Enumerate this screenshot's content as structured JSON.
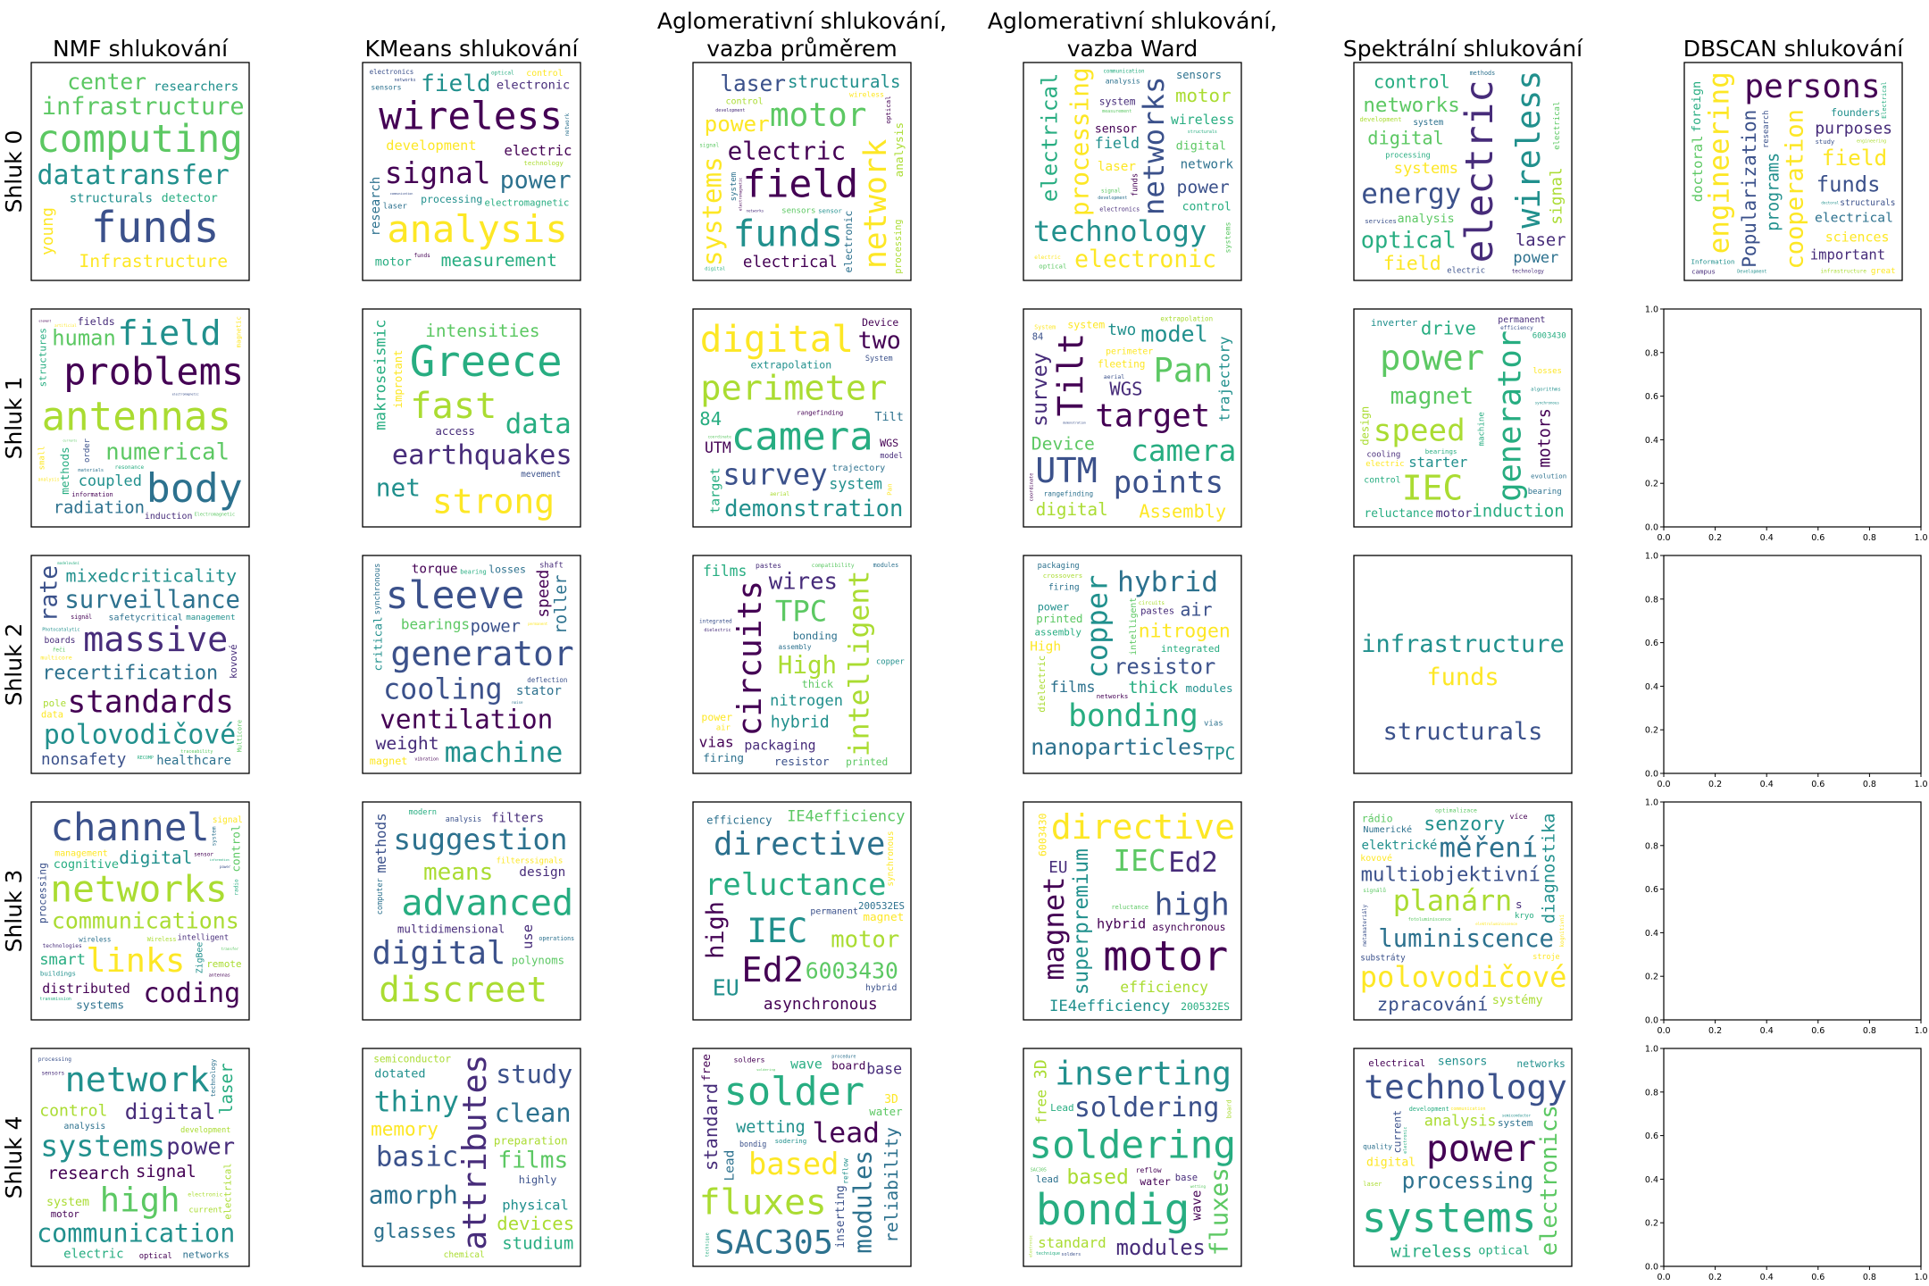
{
  "chart_data": {
    "type": "wordcloud-grid",
    "columns": [
      "NMF shlukování",
      "KMeans shlukování",
      "Aglomerativní shlukování,\nvazba průměrem",
      "Aglomerativní shlukování,\nvazba Ward",
      "Spektrální shlukování",
      "DBSCAN shlukování"
    ],
    "rows": [
      "Shluk 0",
      "Shluk 1",
      "Shluk 2",
      "Shluk 3",
      "Shluk 4"
    ],
    "empty_axes_ticks": [
      "0.0",
      "0.2",
      "0.4",
      "0.6",
      "0.8",
      "1.0"
    ],
    "empty_axes_xlim": [
      0,
      1
    ],
    "empty_axes_ylim": [
      0,
      1
    ],
    "palette": [
      "#440154",
      "#472c7a",
      "#3b518b",
      "#2c718e",
      "#21908d",
      "#27ad81",
      "#5cc863",
      "#aadc32",
      "#fde725"
    ],
    "clouds": [
      [
        [
          "funds",
          "datatransfer",
          "computing",
          "infrastructure",
          "center",
          "Infrastructure",
          "young",
          "structurals",
          "researchers",
          "laboratory",
          "detector",
          "Fermilab"
        ],
        [
          "signal",
          "wireless",
          "analysis",
          "field",
          "measurement",
          "structurals",
          "development",
          "power",
          "digital",
          "research",
          "electric",
          "system",
          "electronic",
          "electromagnetic",
          "systems",
          "processing",
          "motor",
          "infrastructure",
          "electronics",
          "sensors",
          "laser",
          "control",
          "electrical",
          "funds",
          "technology",
          "networks",
          "optical",
          "network",
          "communication"
        ],
        [
          "motor",
          "funds",
          "field",
          "electric",
          "laser",
          "structurals",
          "systems",
          "network",
          "electrical",
          "measurement",
          "power",
          "infrastructure",
          "communication",
          "technology",
          "control",
          "research",
          "wireless",
          "analysis",
          "electronic",
          "processing",
          "digital",
          "sensors",
          "system",
          "optical",
          "development",
          "sensor",
          "signal",
          "networks",
          "electromagnetic",
          "electronics"
        ],
        [
          "technology",
          "networks",
          "electronic",
          "processing",
          "digital",
          "motor",
          "electrical",
          "wireless",
          "infrastructure",
          "electromagnetic",
          "control",
          "network",
          "field",
          "power",
          "system",
          "laser",
          "electronics",
          "sensor",
          "funds",
          "systems",
          "analysis",
          "sensors",
          "communication",
          "structurals",
          "development",
          "optical",
          "signal",
          "electric",
          "measurement"
        ],
        [
          "electric",
          "energy",
          "optical",
          "networks",
          "wireless",
          "digital",
          "laser",
          "systems",
          "power",
          "analysis",
          "field",
          "control",
          "signal",
          "electric",
          "processing",
          "system",
          "development",
          "information",
          "technology",
          "communication",
          "services",
          "methods",
          "electrical",
          "magnetic"
        ],
        [
          "engineering",
          "persons",
          "cooperation",
          "Popularization",
          "electrical",
          "important",
          "purposes",
          "doctoral",
          "programs",
          "funds",
          "field",
          "improvement",
          "founders",
          "informatics",
          "sciences",
          "research",
          "foreign",
          "structurals",
          "Information",
          "study",
          "great",
          "Electrical",
          "infrastructure",
          "campus",
          "engineering",
          "doctoral",
          "Development"
        ]
      ],
      [
        [
          "antennas",
          "problems",
          "body",
          "field",
          "numerical",
          "radiation",
          "human",
          "methods",
          "coupled",
          "modeling",
          "induction",
          "high-order",
          "Field",
          "temperature",
          "structures",
          "electric",
          "small",
          "optimization",
          "magnetic",
          "fields",
          "resonance",
          "materials",
          "information",
          "electromagnetic",
          "order",
          "Electromagnetic",
          "element",
          "artificial",
          "analysis",
          "currents"
        ],
        [
          "Greece",
          "fast",
          "earthquakes",
          "strong",
          "data",
          "makroseismic",
          "intensities",
          "net",
          "improtant",
          "GreeceSMINT",
          "access",
          "informations",
          "mevement",
          "information"
        ],
        [
          "survey",
          "perimeter",
          "camera",
          "digital",
          "demonstration",
          "system",
          "fleeting",
          "Assembly",
          "points",
          "Tilt",
          "two",
          "UTM",
          "extrapolation",
          "target",
          "84",
          "trajectory",
          "System",
          "WGS",
          "rangefinding",
          "model",
          "coordinate",
          "Device",
          "aerial",
          "Pan"
        ],
        [
          "target",
          "Pan",
          "camera",
          "Tilt",
          "UTM",
          "survey",
          "trajectory",
          "points",
          "model",
          "digital",
          "Device",
          "Assembly",
          "system",
          "WGS",
          "perimeter",
          "fleeting",
          "rangefinding",
          "two",
          "aerial",
          "System",
          "84",
          "coordinate",
          "extrapolation",
          "demonstration"
        ],
        [
          "power",
          "generator",
          "speed",
          "IEC",
          "magnet",
          "drive",
          "induction",
          "starter",
          "motor",
          "optimization",
          "reluctance",
          "permanent",
          "inverter",
          "excitation",
          "control",
          "motors",
          "bearing",
          "ventilation",
          "efficiency",
          "algorithms",
          "design",
          "synchronous",
          "electric",
          "machine",
          "losses",
          "cooling",
          "6003430",
          "evolution",
          "bearings"
        ],
        null
      ],
      [
        [
          "surveillance",
          "recertification",
          "polovodičové",
          "massive",
          "rate",
          "mixedcriticality",
          "standards",
          "radiometry",
          "nonsafety",
          "healthcare",
          "certification",
          "safetycritical",
          "kovové",
          "safety",
          "boards",
          "pole",
          "numerické",
          "management",
          "Multicore",
          "resource",
          "multicore",
          "data",
          "signál",
          "modelování",
          "Photocatalytic",
          "řeči",
          "traceability",
          "RECOMP"
        ],
        [
          "ventilation",
          "generator",
          "sleeve",
          "cooling",
          "machine",
          "weight",
          "power",
          "roller",
          "speed",
          "optimization",
          "bearings",
          "torque",
          "stator",
          "magnet",
          "critical",
          "shaft",
          "losses",
          "deflection",
          "efficiency",
          "synchronous",
          "bearing",
          "vibration",
          "permanent",
          "noise"
        ],
        [
          "intelligent",
          "circuits",
          "packaging",
          "crossovers",
          "wires",
          "nitrogen",
          "High",
          "TPC",
          "hybrid",
          "vias",
          "bonding",
          "firing",
          "thick",
          "resistor",
          "printed",
          "nanoparticles",
          "films",
          "modules",
          "assembly",
          "power",
          "copper",
          "pastes",
          "integrated",
          "air",
          "dielectric",
          "compatibility"
        ],
        [
          "copper",
          "bonding",
          "nanoparticles",
          "hybrid",
          "nitrogen",
          "resistor",
          "air",
          "thick",
          "films",
          "assembly",
          "intelligent",
          "modules",
          "integrated",
          "compatibility",
          "TPC",
          "firing",
          "pastes",
          "printed",
          "High",
          "power",
          "dielectric",
          "crossovers",
          "packaging",
          "vias",
          "circuits",
          "networks"
        ],
        [
          "infrastructure",
          "funds",
          "structurals"
        ],
        null
      ],
      [
        [
          "links",
          "communications",
          "channel",
          "networks",
          "coding",
          "digital",
          "distributed",
          "communication",
          "processing",
          "smart",
          "systems",
          "cognitive",
          "ZigBee",
          "management",
          "control",
          "intelligent",
          "wireless",
          "buildings",
          "remote",
          "transmission",
          "signal",
          "Wireless",
          "sensor",
          "power",
          "antennas",
          "technologies",
          "system",
          "radio",
          "information",
          "transfer"
        ],
        [
          "advanced",
          "digital",
          "suggestion",
          "discreet",
          "means",
          "methods",
          "multidimensional",
          "use",
          "polynoms",
          "systems",
          "design",
          "filters",
          "computer",
          "modern",
          "polynomial",
          "telecomunication",
          "analysis",
          "operations",
          "filterssignals"
        ],
        [
          "directive",
          "reluctance",
          "IEC",
          "Ed2",
          "asynchronous",
          "6003430",
          "high",
          "motor",
          "EU",
          "IE4efficiency",
          "magnet",
          "efficiency",
          "permanent",
          "hybrid",
          "200532ES",
          "synchronous",
          "superpremium"
        ],
        [
          "motor",
          "magnet",
          "superpremium",
          "directive",
          "synchronous",
          "high",
          "IEC",
          "IE4efficiency",
          "Ed2",
          "permanent",
          "efficiency",
          "asynchronous",
          "hybrid",
          "EU",
          "6003430",
          "200532ES",
          "reluctance"
        ],
        [
          "planárn",
          "měření",
          "luminiscence",
          "polovodičové",
          "senzory",
          "zpracování",
          "multiobjektivní",
          "diagnostika",
          "modelování",
          "systémy",
          "Numerické",
          "nosnými",
          "elektrické",
          "substráty",
          "rádio",
          "kovové",
          "kryo",
          "stroje",
          "metamateriály",
          "s",
          "více",
          "optimalizace",
          "fotoluminiscence",
          "elektroluminiscence",
          "signálů",
          "kognitivní"
        ],
        null
      ],
      [
        [
          "systems",
          "communication",
          "high",
          "network",
          "power",
          "laser",
          "digital",
          "research",
          "control",
          "signal",
          "electrical",
          "electric",
          "current",
          "system",
          "electronics",
          "analysis",
          "technology",
          "networks",
          "optical",
          "electronic",
          "development",
          "processing",
          "motor",
          "sensors"
        ],
        [
          "attributes",
          "glasses",
          "amorph",
          "thiny",
          "basic",
          "potoelectronic",
          "physical",
          "films",
          "devices",
          "clean",
          "study",
          "memory",
          "aplication",
          "studium",
          "preparation",
          "dotated",
          "highly",
          "chemical",
          "semiconductor"
        ],
        [
          "fluxes",
          "lead",
          "solder",
          "based",
          "SAC305",
          "reliability",
          "wetting",
          "modules",
          "standard",
          "base",
          "board",
          "water",
          "free",
          "wave",
          "solders",
          "3D",
          "Lead",
          "inserting",
          "thermochemical",
          "electronic",
          "bondig",
          "soldering",
          "reflow",
          "sodering",
          "procedure",
          "technique"
        ],
        [
          "soldering",
          "bondig",
          "soldering",
          "fluxes",
          "inserting",
          "machine",
          "modules",
          "solder",
          "free",
          "standard",
          "based",
          "3D",
          "base",
          "water",
          "Lead",
          "reflow",
          "procedure",
          "lead",
          "wave",
          "reliability",
          "board",
          "solders",
          "technique",
          "wetting",
          "SAC305",
          "electronic",
          "thermochemical"
        ],
        [
          "technology",
          "electronics",
          "systems",
          "power",
          "processing",
          "analysis",
          "signal",
          "wireless",
          "sensors",
          "digital",
          "electrical",
          "current",
          "optical",
          "networks",
          "electromagnetic",
          "quality",
          "laser",
          "control",
          "system",
          "research",
          "measurement",
          "development",
          "electronic",
          "communication",
          "semiconductor"
        ],
        null
      ]
    ]
  }
}
